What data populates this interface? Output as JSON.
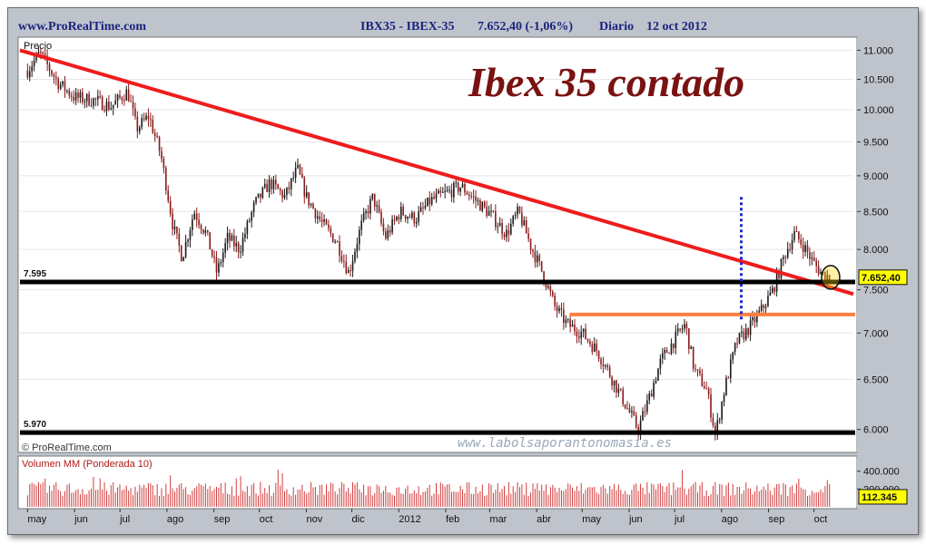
{
  "header": {
    "site": "www.ProRealTime.com",
    "instrument": "IBX35 - IBEX-35",
    "price_change": "7.652,40 (-1,06%)",
    "period": "Diario",
    "date": "12 oct 2012"
  },
  "colors": {
    "frame": "#bfc4cc",
    "header_text": "#1a237e",
    "candle_up": "#1a1a1a",
    "candle_down": "#8b1a1a",
    "trendline": "#ee1c1c",
    "support": "#000000",
    "orange_level": "#ff7f3f",
    "title_text": "#7a1212",
    "vertical_marker": "#1e2bd0",
    "highlight_box": "#ffff00",
    "volume_bars": "#d23c3c"
  },
  "chart_data": [
    {
      "type": "candlestick",
      "panel": "price",
      "label": "Precio",
      "title": "Ibex 35 contado",
      "copyright": "© ProRealTime.com",
      "watermark": "www.labolsaporantonomasia.es",
      "ylim": [
        5800,
        11200
      ],
      "yscale": "log",
      "yticks": [
        {
          "value": 11000,
          "label": "11.000"
        },
        {
          "value": 10500,
          "label": "10.500"
        },
        {
          "value": 10000,
          "label": "10.000"
        },
        {
          "value": 9500,
          "label": "9.500"
        },
        {
          "value": 9000,
          "label": "9.000"
        },
        {
          "value": 8500,
          "label": "8.500"
        },
        {
          "value": 8000,
          "label": "8.000"
        },
        {
          "value": 7500,
          "label": "7.500"
        },
        {
          "value": 7000,
          "label": "7.000"
        },
        {
          "value": 6500,
          "label": "6.500"
        },
        {
          "value": 6000,
          "label": "6.000"
        }
      ],
      "last_price": {
        "value": 7652.4,
        "label": "7.652,40"
      },
      "x_months": [
        {
          "label": "may",
          "day": 0
        },
        {
          "label": "jun",
          "day": 31
        },
        {
          "label": "jul",
          "day": 61
        },
        {
          "label": "ago",
          "day": 92
        },
        {
          "label": "sep",
          "day": 123
        },
        {
          "label": "oct",
          "day": 153
        },
        {
          "label": "nov",
          "day": 184
        },
        {
          "label": "dic",
          "day": 214
        },
        {
          "label": "2012",
          "day": 245
        },
        {
          "label": "feb",
          "day": 276
        },
        {
          "label": "mar",
          "day": 305
        },
        {
          "label": "abr",
          "day": 336
        },
        {
          "label": "may",
          "day": 366
        },
        {
          "label": "jun",
          "day": 397
        },
        {
          "label": "jul",
          "day": 427
        },
        {
          "label": "ago",
          "day": 458
        },
        {
          "label": "sep",
          "day": 489
        },
        {
          "label": "oct",
          "day": 519
        }
      ],
      "xlim_days": [
        -5,
        545
      ],
      "path": [
        {
          "day": 0,
          "value": 10650
        },
        {
          "day": 8,
          "value": 10950
        },
        {
          "day": 20,
          "value": 10450
        },
        {
          "day": 31,
          "value": 10200
        },
        {
          "day": 45,
          "value": 10150
        },
        {
          "day": 55,
          "value": 10050
        },
        {
          "day": 66,
          "value": 10300
        },
        {
          "day": 72,
          "value": 9700
        },
        {
          "day": 80,
          "value": 9900
        },
        {
          "day": 88,
          "value": 9300
        },
        {
          "day": 96,
          "value": 8300
        },
        {
          "day": 102,
          "value": 7900
        },
        {
          "day": 110,
          "value": 8500
        },
        {
          "day": 118,
          "value": 8200
        },
        {
          "day": 125,
          "value": 7700
        },
        {
          "day": 132,
          "value": 8150
        },
        {
          "day": 140,
          "value": 8000
        },
        {
          "day": 150,
          "value": 8600
        },
        {
          "day": 160,
          "value": 8900
        },
        {
          "day": 170,
          "value": 8700
        },
        {
          "day": 178,
          "value": 9100
        },
        {
          "day": 184,
          "value": 8700
        },
        {
          "day": 194,
          "value": 8350
        },
        {
          "day": 204,
          "value": 8100
        },
        {
          "day": 212,
          "value": 7700
        },
        {
          "day": 220,
          "value": 8300
        },
        {
          "day": 228,
          "value": 8700
        },
        {
          "day": 236,
          "value": 8150
        },
        {
          "day": 246,
          "value": 8500
        },
        {
          "day": 256,
          "value": 8400
        },
        {
          "day": 266,
          "value": 8650
        },
        {
          "day": 276,
          "value": 8750
        },
        {
          "day": 286,
          "value": 8850
        },
        {
          "day": 296,
          "value": 8650
        },
        {
          "day": 306,
          "value": 8450
        },
        {
          "day": 316,
          "value": 8200
        },
        {
          "day": 324,
          "value": 8500
        },
        {
          "day": 332,
          "value": 8050
        },
        {
          "day": 340,
          "value": 7700
        },
        {
          "day": 348,
          "value": 7300
        },
        {
          "day": 356,
          "value": 7100
        },
        {
          "day": 366,
          "value": 7000
        },
        {
          "day": 376,
          "value": 6800
        },
        {
          "day": 386,
          "value": 6500
        },
        {
          "day": 396,
          "value": 6200
        },
        {
          "day": 403,
          "value": 6000
        },
        {
          "day": 410,
          "value": 6300
        },
        {
          "day": 418,
          "value": 6700
        },
        {
          "day": 426,
          "value": 6900
        },
        {
          "day": 434,
          "value": 7100
        },
        {
          "day": 440,
          "value": 6600
        },
        {
          "day": 448,
          "value": 6400
        },
        {
          "day": 454,
          "value": 5950
        },
        {
          "day": 460,
          "value": 6400
        },
        {
          "day": 468,
          "value": 6900
        },
        {
          "day": 476,
          "value": 7050
        },
        {
          "day": 484,
          "value": 7250
        },
        {
          "day": 492,
          "value": 7500
        },
        {
          "day": 500,
          "value": 7950
        },
        {
          "day": 506,
          "value": 8200
        },
        {
          "day": 512,
          "value": 8050
        },
        {
          "day": 518,
          "value": 7850
        },
        {
          "day": 524,
          "value": 7700
        },
        {
          "day": 530,
          "value": 7652
        }
      ],
      "annotations": {
        "trendline": {
          "start": {
            "day": -5,
            "value": 11000
          },
          "end": {
            "day": 545,
            "value": 7450
          }
        },
        "support_upper": {
          "value": 7595,
          "label": "7.595"
        },
        "support_lower": {
          "value": 5970,
          "label": "5.970"
        },
        "orange_level": {
          "value": 7210,
          "from_day": 358,
          "to_day": 545
        },
        "vertical_marker": {
          "day": 471,
          "from_value": 7150,
          "to_value": 8700
        },
        "circle": {
          "day": 530,
          "value": 7652
        }
      }
    },
    {
      "type": "bar",
      "panel": "volume",
      "label": "Volumen MM (Ponderada 10)",
      "ylim": [
        0,
        550000
      ],
      "yticks": [
        {
          "value": 400000,
          "label": "400.000"
        },
        {
          "value": 200000,
          "label": "200.000"
        }
      ],
      "last_value": {
        "value": 112345,
        "label": "112.345"
      },
      "typical_range": [
        120000,
        280000
      ]
    }
  ]
}
